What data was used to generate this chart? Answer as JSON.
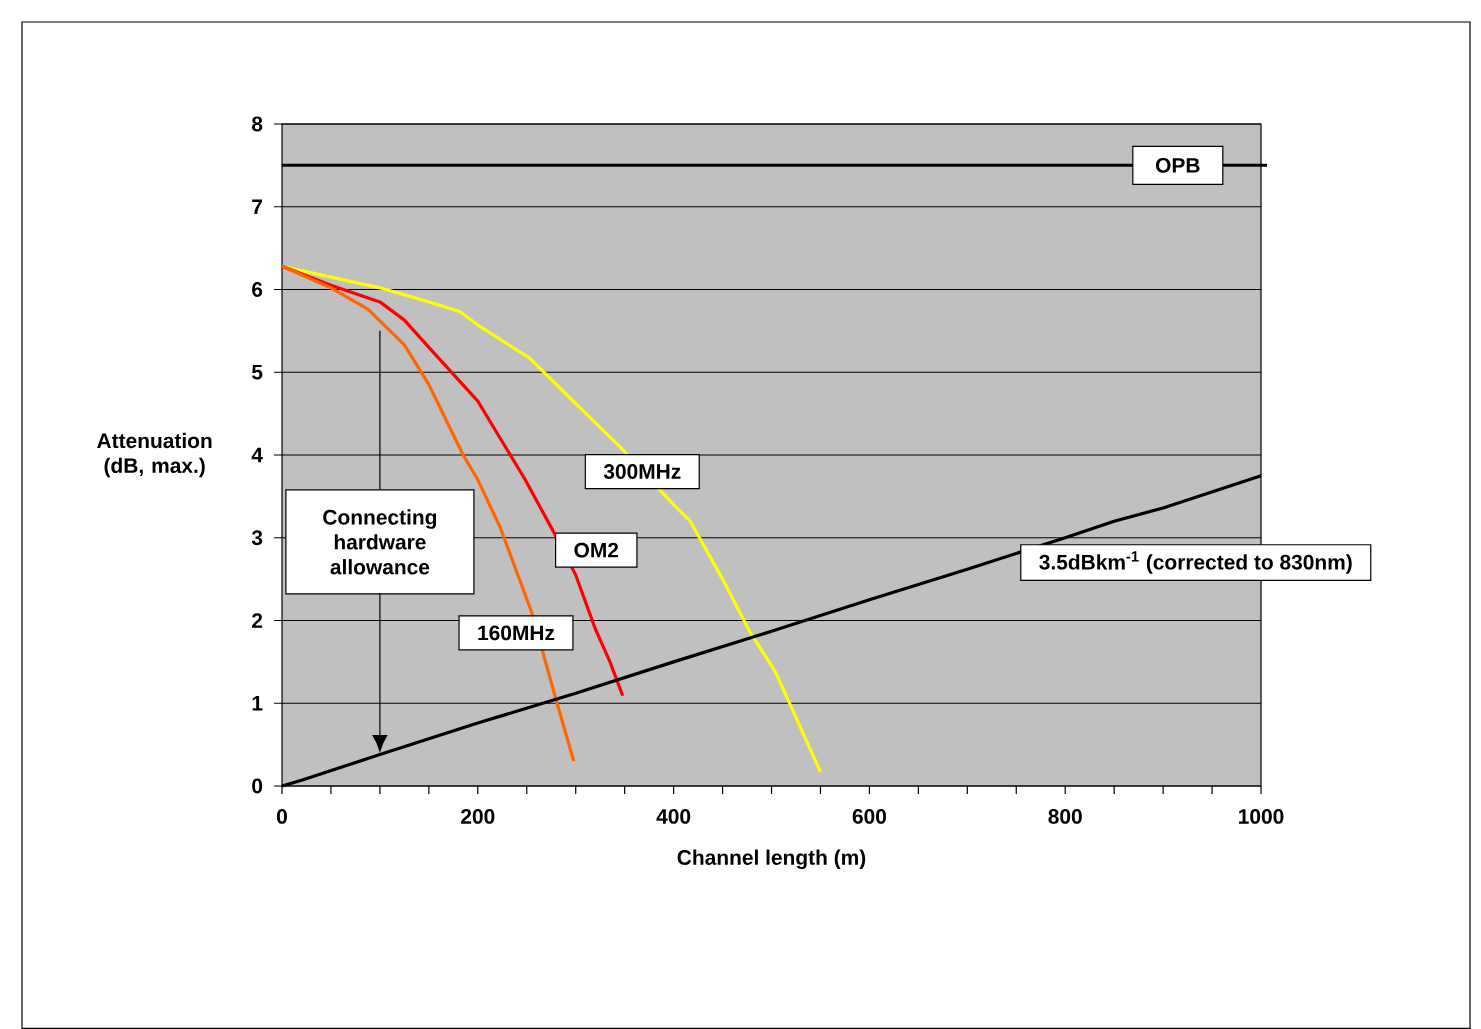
{
  "chart_data": {
    "type": "line",
    "xlabel": "Channel length (m)",
    "ylabel": "Attenuation (dB, max.)",
    "xlim": [
      0,
      1000
    ],
    "ylim": [
      0,
      8
    ],
    "xticks": [
      0,
      {
        "value": 50,
        "label": null
      },
      {
        "value": 100,
        "label": null
      },
      {
        "value": 150,
        "label": null
      },
      200,
      {
        "value": 250,
        "label": null
      },
      {
        "value": 300,
        "label": null
      },
      {
        "value": 350,
        "label": null
      },
      400,
      {
        "value": 450,
        "label": null
      },
      {
        "value": 500,
        "label": null
      },
      {
        "value": 550,
        "label": null
      },
      600,
      {
        "value": 650,
        "label": null
      },
      {
        "value": 700,
        "label": null
      },
      {
        "value": 750,
        "label": null
      },
      800,
      {
        "value": 850,
        "label": null
      },
      {
        "value": 900,
        "label": null
      },
      {
        "value": 950,
        "label": null
      },
      1000
    ],
    "yticks": [
      0,
      1,
      2,
      3,
      4,
      5,
      6,
      7,
      8
    ],
    "grid": "y",
    "marker": "none",
    "line_style": "solid",
    "series": [
      {
        "name": "300MHz",
        "color": "#ffff00",
        "x": [
          0,
          50,
          100,
          150,
          182,
          200,
          253,
          300,
          345,
          400,
          417,
          450,
          478,
          504,
          550
        ],
        "values": [
          6.28,
          6.15,
          6.02,
          5.85,
          5.73,
          5.57,
          5.17,
          4.62,
          4.1,
          3.4,
          3.2,
          2.5,
          1.86,
          1.38,
          0.17
        ]
      },
      {
        "name": "OM2",
        "color": "#ff0000",
        "x": [
          0,
          50,
          100,
          125,
          150,
          200,
          248,
          277,
          300,
          320,
          335,
          348
        ],
        "values": [
          6.28,
          6.05,
          5.85,
          5.63,
          5.3,
          4.65,
          3.71,
          3.08,
          2.55,
          1.9,
          1.5,
          1.09
        ]
      },
      {
        "name": "160MHz",
        "color": "#ff6600",
        "x": [
          0,
          50,
          88,
          125,
          150,
          185,
          200,
          223,
          255,
          280,
          298
        ],
        "values": [
          6.28,
          6.02,
          5.76,
          5.33,
          4.85,
          4.0,
          3.7,
          3.12,
          2.1,
          1.04,
          0.3
        ]
      },
      {
        "name": "3.5dBkm$^{-1}$ (corrected to 830nm)",
        "color": "#000000",
        "x": [
          0,
          20,
          100,
          200,
          300,
          400,
          500,
          600,
          700,
          800,
          850,
          900,
          1000
        ],
        "values": [
          0,
          0.07,
          0.38,
          0.76,
          1.12,
          1.5,
          1.87,
          2.25,
          2.62,
          3.0,
          3.2,
          3.36,
          3.75
        ]
      }
    ],
    "ref_lines": [
      {
        "axis": "y",
        "value": 7.5,
        "label": "OPB",
        "color": "#000000"
      }
    ],
    "annotations": [
      "Connecting hardware allowance"
    ]
  }
}
